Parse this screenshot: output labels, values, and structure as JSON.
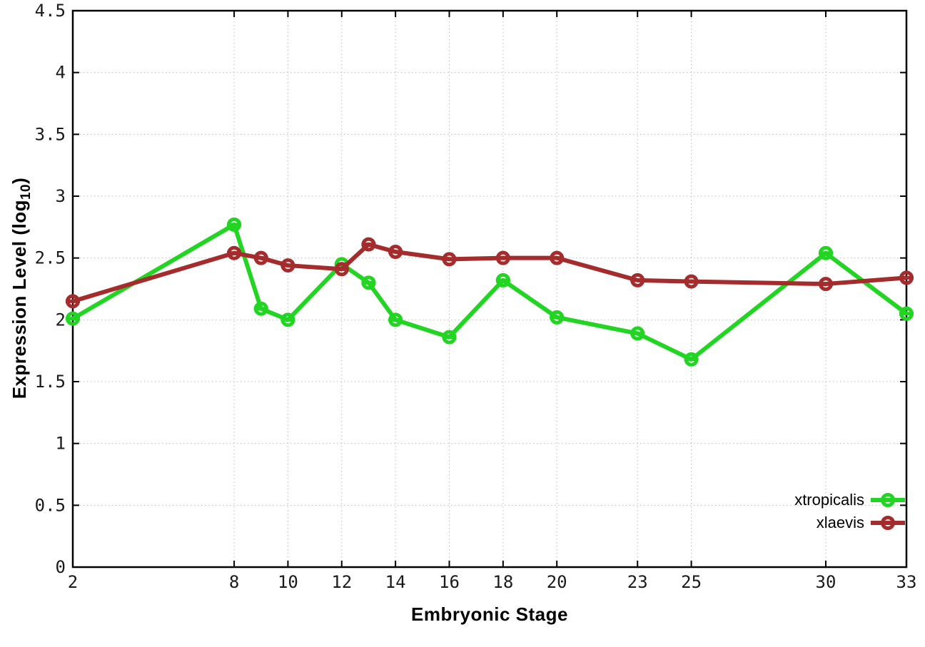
{
  "chart_data": {
    "type": "line",
    "title": "",
    "xlabel": "Embryonic Stage",
    "ylabel": {
      "prefix": "Expression Level (log",
      "sub": "10",
      "suffix": ")"
    },
    "xlim": [
      2,
      33
    ],
    "ylim": [
      0,
      4.5
    ],
    "x_ticks": [
      2,
      8,
      10,
      12,
      14,
      16,
      18,
      20,
      23,
      25,
      30,
      33
    ],
    "y_ticks": [
      "0",
      "0.5",
      "1",
      "1.5",
      "2",
      "2.5",
      "3",
      "3.5",
      "4",
      "4.5"
    ],
    "grid": true,
    "legend_position": "bottom-right",
    "colors": {
      "grid": "#bdbdbd",
      "frame": "#000000",
      "background": "#ffffff"
    },
    "series": [
      {
        "name": "xtropicalis",
        "color": "#23d523",
        "x": [
          2,
          8,
          9,
          10,
          12,
          13,
          14,
          16,
          18,
          20,
          23,
          25,
          30,
          33
        ],
        "y": [
          2.01,
          2.77,
          2.09,
          2.0,
          2.45,
          2.3,
          2.0,
          1.86,
          2.32,
          2.02,
          1.89,
          1.68,
          2.54,
          2.05
        ]
      },
      {
        "name": "xlaevis",
        "color": "#a52c2c",
        "x": [
          2,
          8,
          9,
          10,
          12,
          13,
          14,
          16,
          18,
          20,
          23,
          25,
          30,
          33
        ],
        "y": [
          2.15,
          2.54,
          2.5,
          2.44,
          2.41,
          2.61,
          2.55,
          2.49,
          2.5,
          2.5,
          2.32,
          2.31,
          2.29,
          2.34
        ]
      }
    ]
  }
}
